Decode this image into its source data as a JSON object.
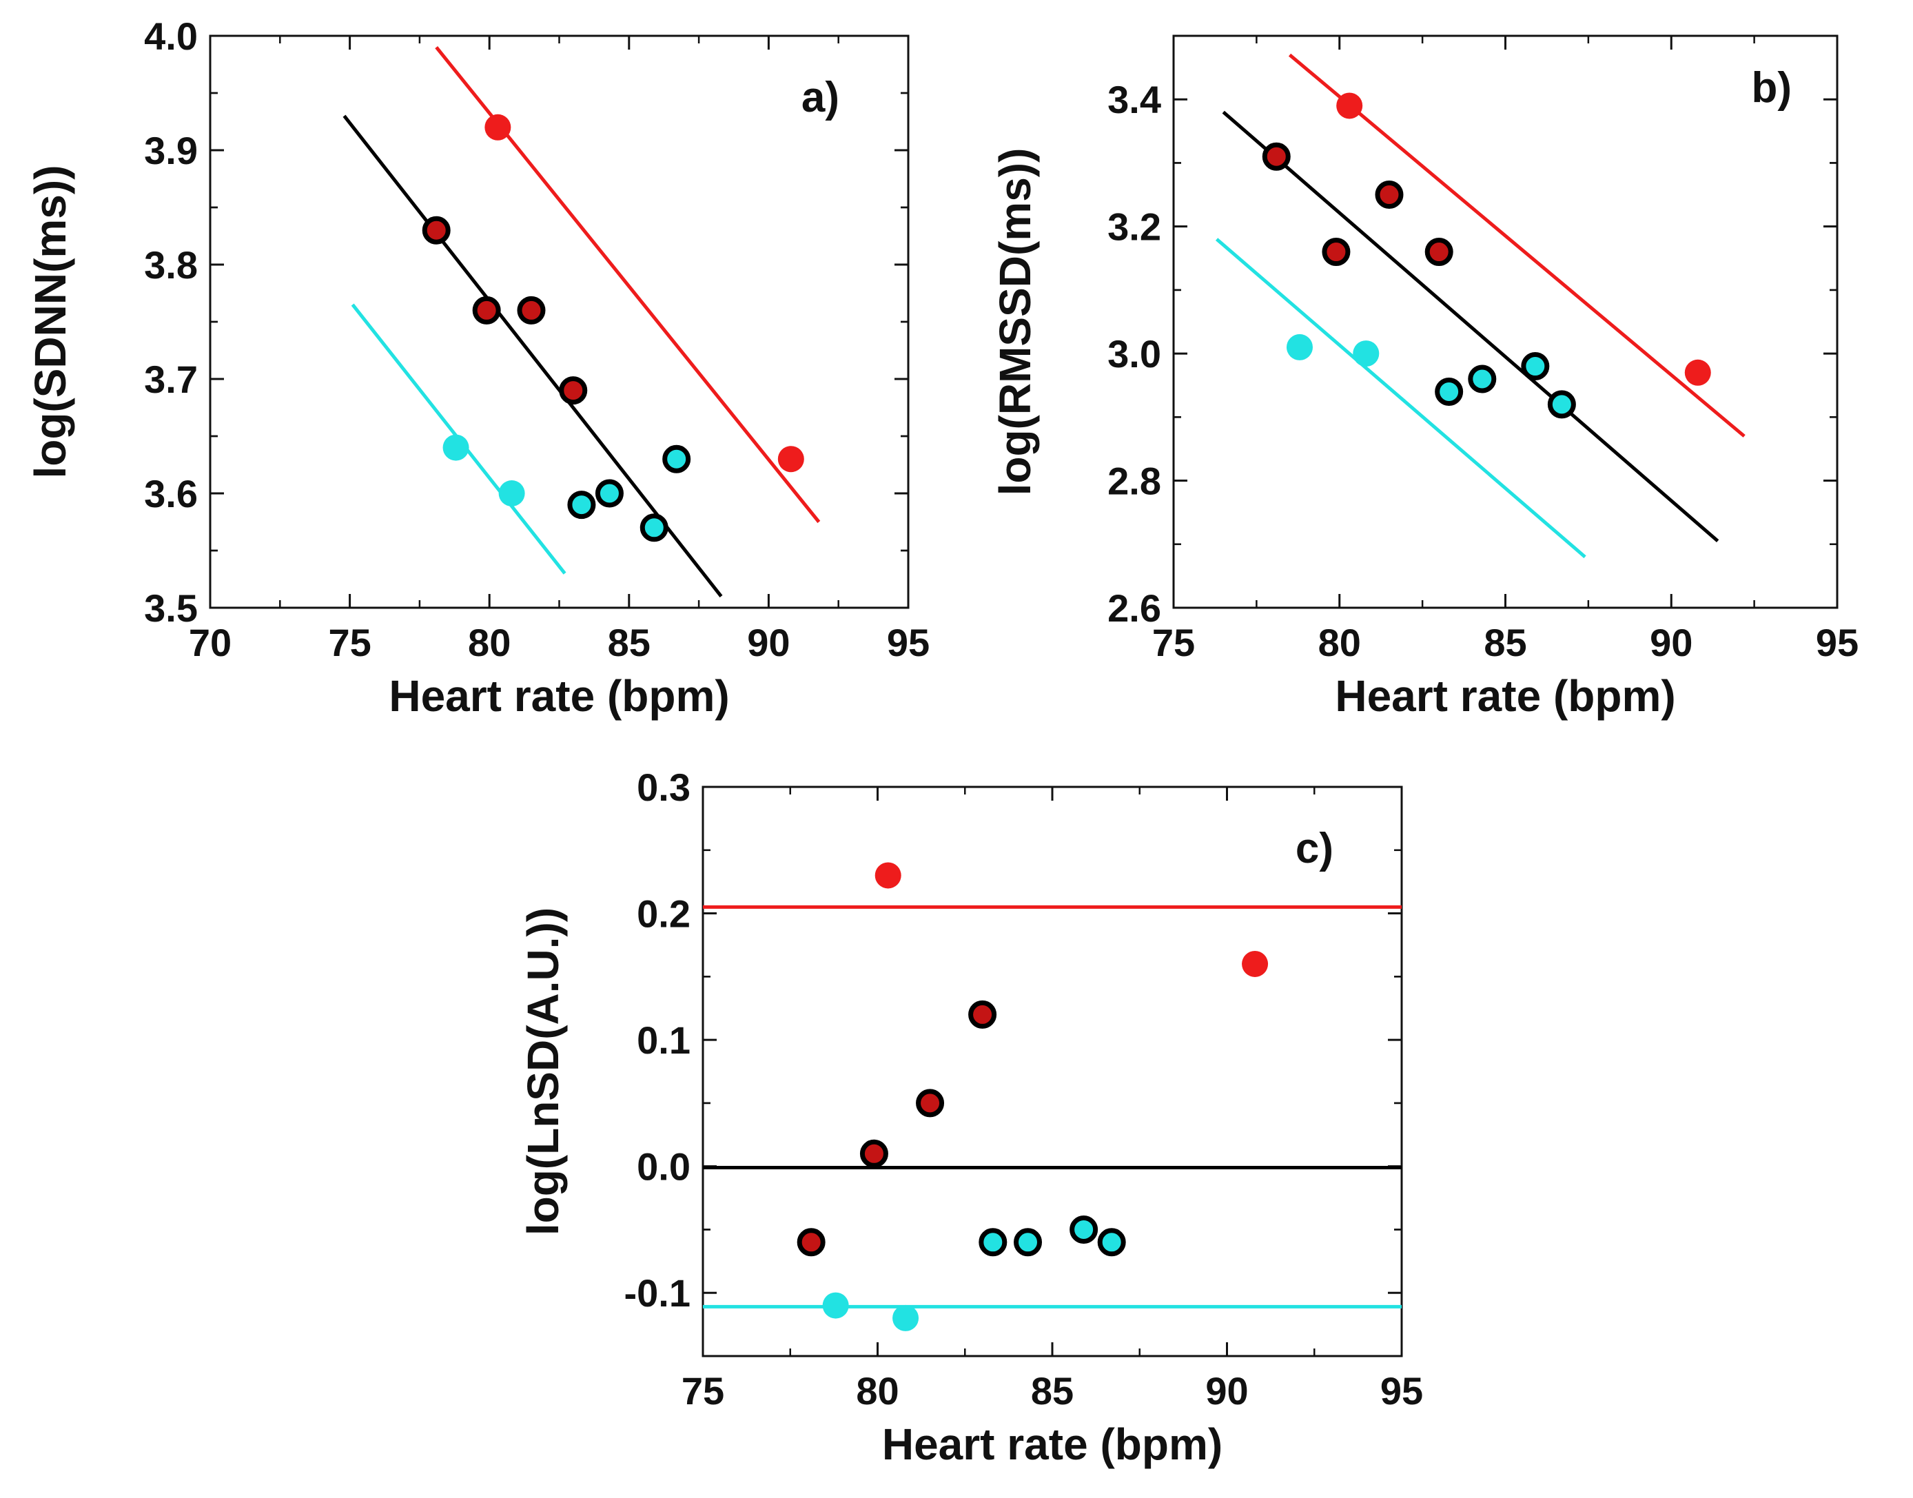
{
  "colors": {
    "black": "#000000",
    "red": "#ee1c1c",
    "cyan": "#22e2e2",
    "dark_red": "#c41414",
    "axis": "#111111"
  },
  "chart_data": [
    {
      "type": "scatter",
      "panel_label": "a)",
      "xlabel": "Heart rate (bpm)",
      "ylabel": "log(SDNN(ms))",
      "xlim": [
        70,
        95
      ],
      "ylim": [
        3.5,
        4.0
      ],
      "xticks": [
        70,
        75,
        80,
        85,
        90,
        95
      ],
      "yticks": [
        3.5,
        3.6,
        3.7,
        3.8,
        3.9,
        4.0
      ],
      "xtick_labels": [
        "70",
        "75",
        "80",
        "85",
        "90",
        "95"
      ],
      "ytick_labels": [
        "3.5",
        "3.6",
        "3.7",
        "3.8",
        "3.9",
        "4.0"
      ],
      "series": [
        {
          "name": "black-group",
          "style": "dark_red_outlined",
          "x": [
            78.1,
            79.9,
            81.5,
            83.0
          ],
          "y": [
            3.83,
            3.76,
            3.76,
            3.69
          ]
        },
        {
          "name": "cyan-outlined-group",
          "style": "cyan_outlined",
          "x": [
            83.3,
            84.3,
            85.9,
            86.7
          ],
          "y": [
            3.59,
            3.6,
            3.57,
            3.63
          ]
        },
        {
          "name": "red-group",
          "style": "red",
          "x": [
            80.3,
            90.8
          ],
          "y": [
            3.92,
            3.63
          ]
        },
        {
          "name": "cyan-group",
          "style": "cyan",
          "x": [
            78.8,
            80.8
          ],
          "y": [
            3.64,
            3.6
          ]
        }
      ],
      "fit_lines": [
        {
          "name": "black-fit",
          "color": "black",
          "x": [
            74.8,
            88.3
          ],
          "y": [
            3.93,
            3.51
          ]
        },
        {
          "name": "red-fit",
          "color": "red",
          "x": [
            78.1,
            91.8
          ],
          "y": [
            3.99,
            3.575
          ]
        },
        {
          "name": "cyan-fit",
          "color": "cyan",
          "x": [
            75.1,
            82.7
          ],
          "y": [
            3.765,
            3.53
          ]
        }
      ]
    },
    {
      "type": "scatter",
      "panel_label": "b)",
      "xlabel": "Heart rate (bpm)",
      "ylabel": "log(RMSSD(ms))",
      "xlim": [
        75,
        95
      ],
      "ylim": [
        2.6,
        3.5
      ],
      "xticks": [
        75,
        80,
        85,
        90,
        95
      ],
      "yticks": [
        2.6,
        2.8,
        3.0,
        3.2,
        3.4
      ],
      "xtick_labels": [
        "75",
        "80",
        "85",
        "90",
        "95"
      ],
      "ytick_labels": [
        "2.6",
        "2.8",
        "3.0",
        "3.2",
        "3.4"
      ],
      "series": [
        {
          "name": "black-group",
          "style": "dark_red_outlined",
          "x": [
            78.1,
            79.9,
            81.5,
            83.0
          ],
          "y": [
            3.31,
            3.16,
            3.25,
            3.16
          ]
        },
        {
          "name": "cyan-outlined-group",
          "style": "cyan_outlined",
          "x": [
            83.3,
            84.3,
            85.9,
            86.7
          ],
          "y": [
            2.94,
            2.96,
            2.98,
            2.92
          ]
        },
        {
          "name": "red-group",
          "style": "red",
          "x": [
            80.3,
            90.8
          ],
          "y": [
            3.39,
            2.97
          ]
        },
        {
          "name": "cyan-group",
          "style": "cyan",
          "x": [
            78.8,
            80.8
          ],
          "y": [
            3.01,
            3.0
          ]
        }
      ],
      "fit_lines": [
        {
          "name": "black-fit",
          "color": "black",
          "x": [
            76.5,
            91.4
          ],
          "y": [
            3.38,
            2.705
          ]
        },
        {
          "name": "red-fit",
          "color": "red",
          "x": [
            78.5,
            92.2
          ],
          "y": [
            3.47,
            2.87
          ]
        },
        {
          "name": "cyan-fit",
          "color": "cyan",
          "x": [
            76.3,
            87.4
          ],
          "y": [
            3.18,
            2.68
          ]
        }
      ]
    },
    {
      "type": "scatter",
      "panel_label": "c)",
      "xlabel": "Heart rate (bpm)",
      "ylabel": "log(LnSD(A.U.))",
      "xlim": [
        75,
        95
      ],
      "ylim": [
        -0.15,
        0.3
      ],
      "xticks": [
        75,
        80,
        85,
        90,
        95
      ],
      "yticks": [
        -0.1,
        0.0,
        0.1,
        0.2,
        0.3
      ],
      "xtick_labels": [
        "75",
        "80",
        "85",
        "90",
        "95"
      ],
      "ytick_labels": [
        "-0.1",
        "0.0",
        "0.1",
        "0.2",
        "0.3"
      ],
      "series": [
        {
          "name": "black-group",
          "style": "dark_red_outlined",
          "x": [
            78.1,
            79.9,
            81.5,
            83.0
          ],
          "y": [
            -0.06,
            0.01,
            0.05,
            0.12
          ]
        },
        {
          "name": "cyan-outlined-group",
          "style": "cyan_outlined",
          "x": [
            83.3,
            84.3,
            85.9,
            86.7
          ],
          "y": [
            -0.06,
            -0.06,
            -0.05,
            -0.06
          ]
        },
        {
          "name": "red-group",
          "style": "red",
          "x": [
            80.3,
            90.8
          ],
          "y": [
            0.23,
            0.16
          ]
        },
        {
          "name": "cyan-group",
          "style": "cyan",
          "x": [
            78.8,
            80.8
          ],
          "y": [
            -0.11,
            -0.12
          ]
        }
      ],
      "fit_lines": [
        {
          "name": "black-fit",
          "color": "black",
          "x": [
            75.0,
            95.0
          ],
          "y": [
            -0.001,
            -0.001
          ]
        },
        {
          "name": "red-fit",
          "color": "red",
          "x": [
            75.0,
            95.0
          ],
          "y": [
            0.205,
            0.205
          ]
        },
        {
          "name": "cyan-fit",
          "color": "cyan",
          "x": [
            75.0,
            95.0
          ],
          "y": [
            -0.111,
            -0.111
          ]
        }
      ]
    }
  ]
}
